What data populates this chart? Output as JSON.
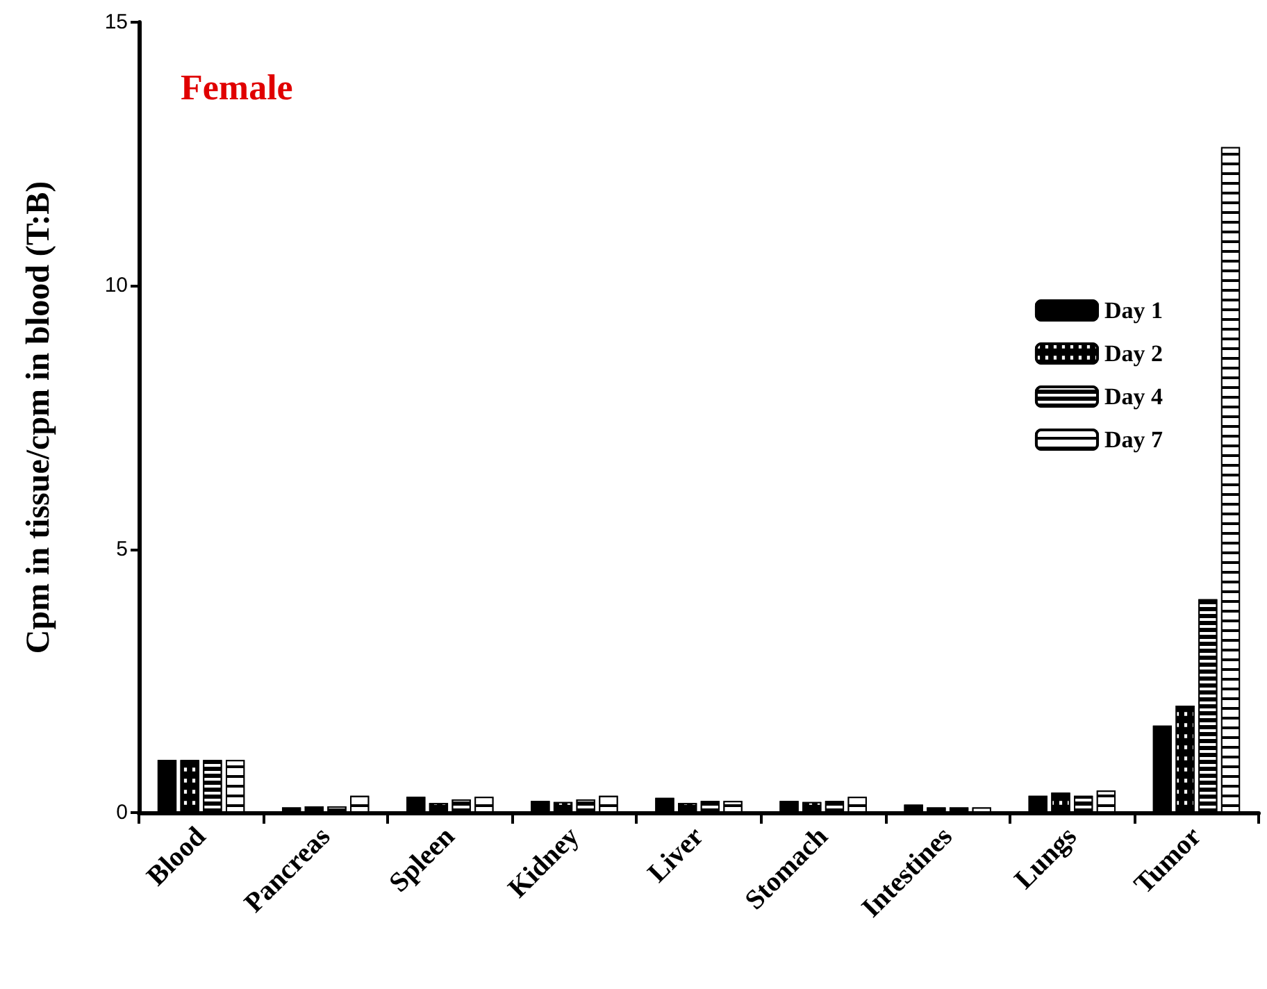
{
  "chart_data": {
    "type": "bar",
    "title": "Female",
    "ylabel": "Cpm in tissue/cpm in blood (T:B)",
    "categories": [
      "Blood",
      "Pancreas",
      "Spleen",
      "Kidney",
      "Liver",
      "Stomach",
      "Intestines",
      "Lungs",
      "Tumor"
    ],
    "series": [
      {
        "name": "Day 1",
        "color": "#000000",
        "values": [
          1.0,
          0.1,
          0.3,
          0.22,
          0.28,
          0.22,
          0.15,
          0.32,
          1.65
        ]
      },
      {
        "name": "Day 2",
        "color": "#000000",
        "values": [
          1.0,
          0.12,
          0.18,
          0.2,
          0.18,
          0.2,
          0.1,
          0.38,
          2.03
        ]
      },
      {
        "name": "Day 4",
        "color": "#000000",
        "values": [
          1.0,
          0.12,
          0.25,
          0.25,
          0.22,
          0.22,
          0.1,
          0.32,
          4.05
        ]
      },
      {
        "name": "Day 7",
        "color": "#000000",
        "values": [
          1.0,
          0.32,
          0.3,
          0.32,
          0.22,
          0.3,
          0.1,
          0.42,
          12.63
        ]
      }
    ],
    "ylim": [
      0,
      15
    ],
    "yticks": [
      0,
      5,
      10,
      15
    ],
    "grid": false,
    "legend": "right"
  }
}
